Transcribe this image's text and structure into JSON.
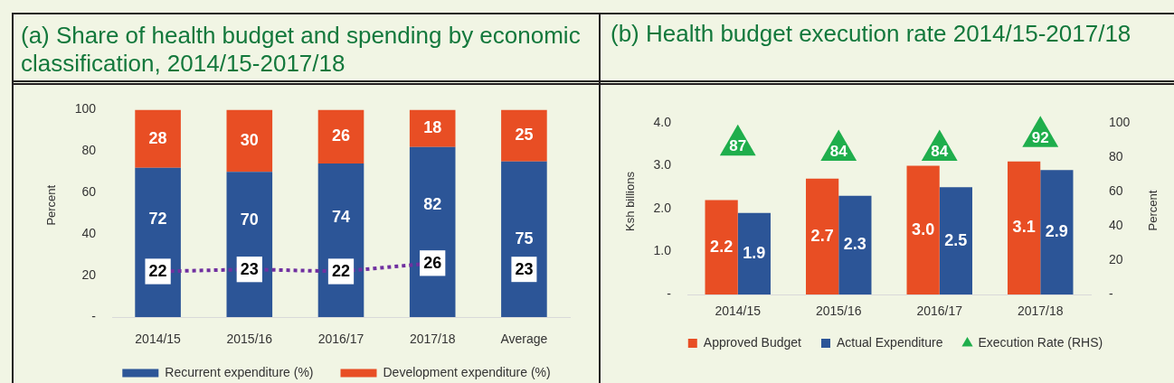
{
  "chart_data": [
    {
      "type": "bar",
      "title": "(a) Share of health budget and spending by economic classification, 2014/15-2017/18",
      "ylabel": "Percent",
      "categories": [
        "2014/15",
        "2015/16",
        "2016/17",
        "2017/18",
        "Average"
      ],
      "series": [
        {
          "name": "Recurrent expenditure (%)",
          "color": "#2c5597",
          "values": [
            72,
            70,
            74,
            82,
            75
          ]
        },
        {
          "name": "Development expenditure (%)",
          "color": "#e84e24",
          "values": [
            28,
            30,
            26,
            18,
            25
          ]
        },
        {
          "type": "line",
          "color": "#7030a0",
          "marker": "square",
          "values": [
            22,
            23,
            22,
            26,
            null
          ]
        }
      ],
      "annotations": [
        {
          "text": "23",
          "x": "Average",
          "y": 23
        }
      ],
      "stacked": true,
      "ylim": [
        0,
        100
      ],
      "yticks": [
        {
          "value": 0,
          "label": "-"
        },
        20,
        40,
        60,
        80,
        100
      ],
      "legend": "bottom",
      "data_labels": true,
      "line_style": "dotted"
    },
    {
      "type": "bar",
      "title": "(b) Health budget execution rate 2014/15-2017/18",
      "ylabel": "Ksh billions",
      "y2label": "Percent",
      "categories": [
        "2014/15",
        "2015/16",
        "2016/17",
        "2017/18"
      ],
      "series": [
        {
          "name": "Approved Budget",
          "color": "#e84e24",
          "values": [
            2.2,
            2.7,
            3.0,
            3.1
          ],
          "value_labels": [
            "2.2",
            "2.7",
            "3.0",
            "3.1"
          ]
        },
        {
          "name": "Actual Expenditure",
          "color": "#2c5597",
          "values": [
            1.9,
            2.3,
            2.5,
            2.9
          ],
          "value_labels": [
            "1.9",
            "2.3",
            "2.5",
            "2.9"
          ]
        },
        {
          "name": "Execution Rate (RHS)",
          "type": "scatter",
          "axis": "y2",
          "color": "#1fae4c",
          "values": [
            87,
            84,
            84,
            92
          ],
          "value_labels": [
            "87",
            "84",
            "84",
            "92"
          ]
        }
      ],
      "ylim": [
        0,
        4
      ],
      "yticks": [
        {
          "value": 0,
          "label": "-"
        },
        {
          "value": 1,
          "label": "1.0"
        },
        {
          "value": 2,
          "label": "2.0"
        },
        {
          "value": 3,
          "label": "3.0"
        },
        {
          "value": 4,
          "label": "4.0"
        }
      ],
      "y2lim": [
        0,
        100
      ],
      "y2ticks": [
        {
          "value": 0,
          "label": "-"
        },
        20,
        40,
        60,
        80,
        100
      ],
      "legend": "bottom",
      "marker": "triangle"
    }
  ]
}
